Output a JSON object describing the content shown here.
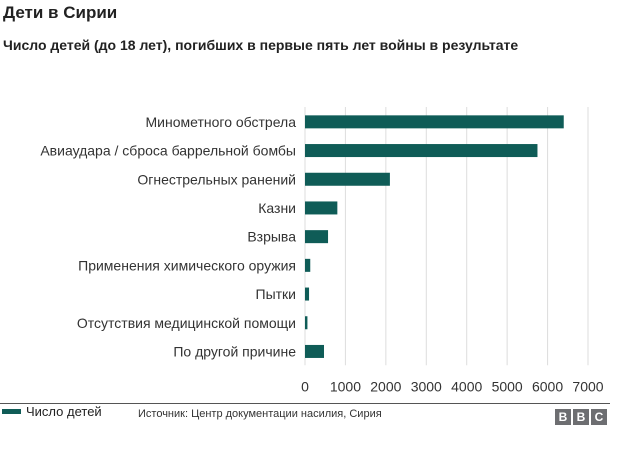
{
  "header": {
    "title": "Дети в Сирии",
    "subtitle": "Число детей (до 18 лет), погибших в первые пять лет войны в результате"
  },
  "chart_data": {
    "type": "bar",
    "orientation": "horizontal",
    "title": "Дети в Сирии",
    "subtitle": "Число детей (до 18 лет), погибших в первые пять лет войны в результате",
    "categories": [
      "Минометного обстрела",
      "Авиаудара / сброса баррельной бомбы",
      "Огнестрельных ранений",
      "Казни",
      "Взрыва",
      "Применения химического оружия",
      "Пытки",
      "Отсутствия медицинской помощи",
      "По другой причине"
    ],
    "series": [
      {
        "name": "Число детей",
        "values": [
          6400,
          5750,
          2100,
          800,
          570,
          130,
          100,
          60,
          470
        ]
      }
    ],
    "xlim": [
      0,
      7000
    ],
    "xticks": [
      0,
      1000,
      2000,
      3000,
      4000,
      5000,
      6000,
      7000
    ],
    "grid": true,
    "legend_position": "bottom-left",
    "bar_color": "#0f5c57"
  },
  "legend": {
    "label": "Число детей"
  },
  "footer": {
    "source": "Источник: Центр документации насилия, Сирия",
    "logo_letters": [
      "B",
      "B",
      "C"
    ]
  }
}
